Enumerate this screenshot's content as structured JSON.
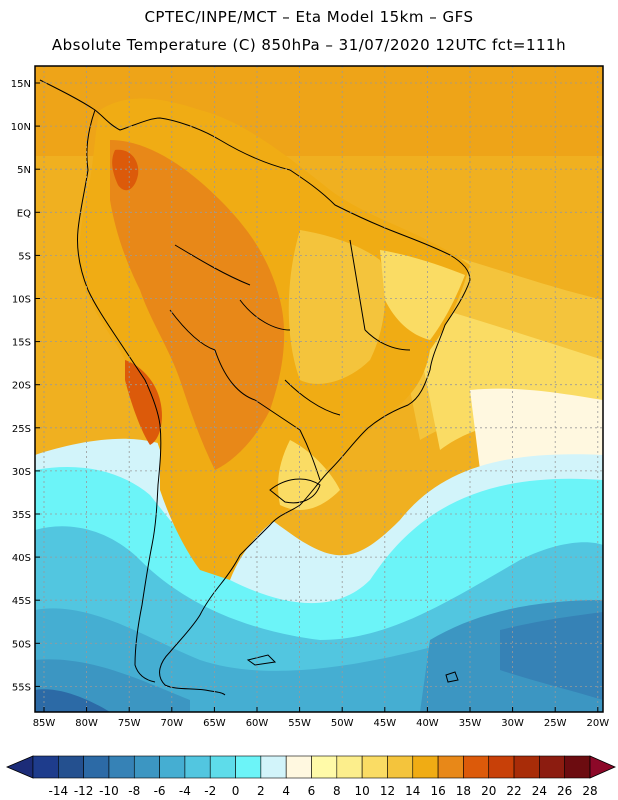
{
  "header": {
    "line1": "CPTEC/INPE/MCT –  Eta Model 15km – GFS",
    "line2": "Absolute Temperature (C) 850hPa – 31/07/2020 12UTC fct=111h"
  },
  "map": {
    "lat_labels": [
      "15N",
      "10N",
      "5N",
      "EQ",
      "5S",
      "10S",
      "15S",
      "20S",
      "25S",
      "30S",
      "35S",
      "40S",
      "45S",
      "50S",
      "55S"
    ],
    "lon_labels": [
      "85W",
      "80W",
      "75W",
      "70W",
      "65W",
      "60W",
      "55W",
      "50W",
      "45W",
      "40W",
      "35W",
      "30W",
      "25W",
      "20W"
    ],
    "gridline_color": "#999999"
  },
  "colorbar": {
    "labels": [
      "-14",
      "-12",
      "-10",
      "-8",
      "-6",
      "-4",
      "-2",
      "0",
      "2",
      "4",
      "6",
      "8",
      "10",
      "12",
      "14",
      "16",
      "18",
      "20",
      "22",
      "24",
      "26",
      "28"
    ],
    "colors": [
      "#1e3c8c",
      "#24508f",
      "#2c6aa6",
      "#3682b6",
      "#3c96c2",
      "#45aed2",
      "#52c6e0",
      "#5edcea",
      "#6cf4f8",
      "#d2f4fa",
      "#fff8e0",
      "#fffaa8",
      "#fcee8c",
      "#fadc64",
      "#f4c43c",
      "#f0ac14",
      "#e88818",
      "#dc5a0a",
      "#c84008",
      "#a82c08",
      "#8c1c10",
      "#6c0c10"
    ],
    "under_color": "#1c2c78",
    "over_color": "#8c0828"
  }
}
